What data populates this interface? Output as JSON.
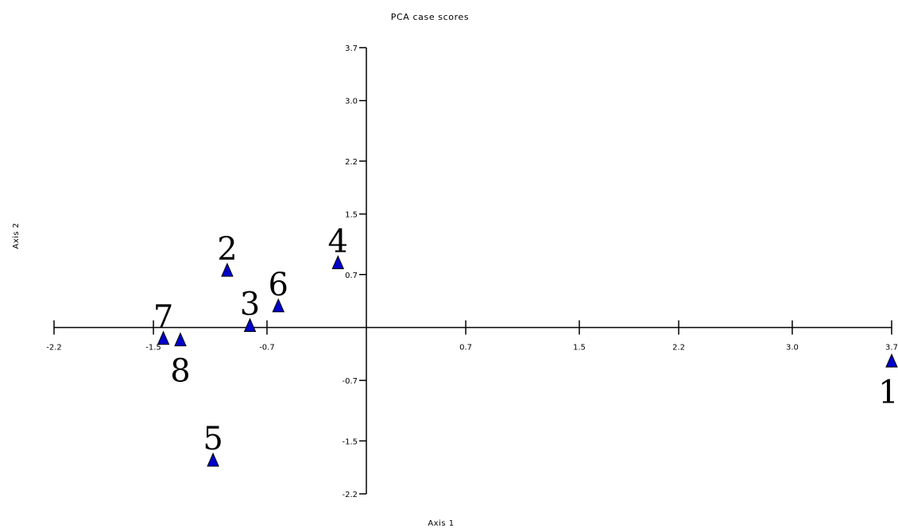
{
  "chart_data": {
    "type": "scatter",
    "title": "PCA case scores",
    "xlabel": "Axis 1",
    "ylabel": "Axis 2",
    "xlim": [
      -2.2,
      3.7
    ],
    "ylim": [
      -2.2,
      3.7
    ],
    "x_ticks": [
      -2.2,
      -1.5,
      -0.7,
      0.7,
      1.5,
      2.2,
      3.0,
      3.7
    ],
    "x_tick_labels": [
      "-2.2",
      "-1.5",
      "-0.7",
      "0.7",
      "1.5",
      "2.2",
      "3.0",
      "3.7"
    ],
    "y_ticks": [
      3.7,
      3.0,
      2.2,
      1.5,
      0.7,
      -0.7,
      -1.5,
      -2.2
    ],
    "y_tick_labels": [
      "3.7",
      "3.0",
      "2.2",
      "1.5",
      "0.7",
      "-0.7",
      "-1.5",
      "-2.2"
    ],
    "grid": false,
    "marker": "triangle",
    "marker_color": "#0000cc",
    "points": [
      {
        "label": "1",
        "x": 3.7,
        "y": -0.45
      },
      {
        "label": "2",
        "x": -0.98,
        "y": 0.75
      },
      {
        "label": "3",
        "x": -0.82,
        "y": 0.02
      },
      {
        "label": "4",
        "x": -0.2,
        "y": 0.85
      },
      {
        "label": "5",
        "x": -1.08,
        "y": -1.76
      },
      {
        "label": "6",
        "x": -0.62,
        "y": 0.28
      },
      {
        "label": "7",
        "x": -1.43,
        "y": -0.15
      },
      {
        "label": "8",
        "x": -1.31,
        "y": -0.17
      }
    ]
  }
}
